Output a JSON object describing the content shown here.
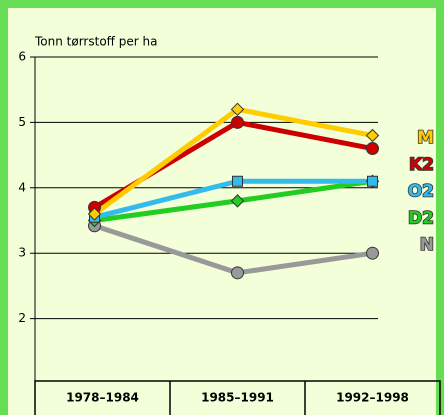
{
  "chart_data": {
    "type": "line",
    "ylabel": "Tonn tørrstoff per ha",
    "categories": [
      "1978–1984",
      "1985–1991",
      "1992–1998"
    ],
    "ylim": [
      1,
      6
    ],
    "yticks": [
      2,
      3,
      4,
      5,
      6
    ],
    "series": [
      {
        "name": "M",
        "color": "#ffcc00",
        "marker": "diamond",
        "values": [
          3.6,
          5.2,
          4.8
        ]
      },
      {
        "name": "K2",
        "color": "#cc0000",
        "marker": "circle",
        "values": [
          3.7,
          5.0,
          4.6
        ]
      },
      {
        "name": "O2",
        "color": "#33bbee",
        "marker": "square",
        "values": [
          3.55,
          4.1,
          4.1
        ]
      },
      {
        "name": "D2",
        "color": "#22cc22",
        "marker": "diamond",
        "values": [
          3.5,
          3.8,
          4.1
        ]
      },
      {
        "name": "N",
        "color": "#999999",
        "marker": "circle",
        "values": [
          3.42,
          2.7,
          3.0
        ]
      }
    ]
  }
}
